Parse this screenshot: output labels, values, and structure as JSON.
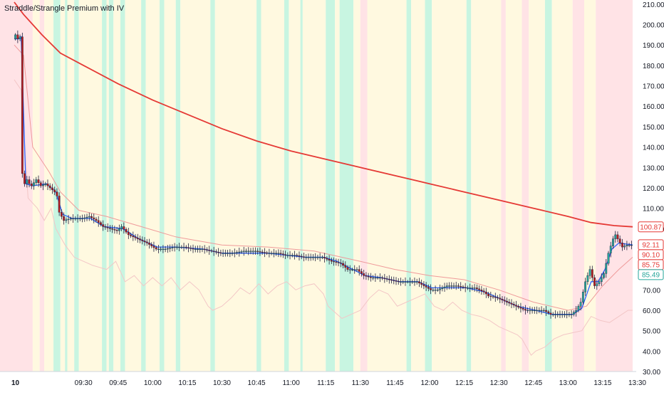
{
  "chart_data": {
    "type": "candlestick",
    "title": "Straddle/Strangle Premium with IV",
    "date_label": "10",
    "x_ticks": [
      "09:30",
      "09:45",
      "10:00",
      "10:15",
      "10:30",
      "10:45",
      "11:00",
      "11:15",
      "11:30",
      "11:45",
      "12:00",
      "12:15",
      "12:30",
      "12:45",
      "13:00",
      "13:15",
      "13:30"
    ],
    "y_ticks": [
      30,
      40,
      50,
      60,
      70,
      80,
      90,
      100,
      110,
      120,
      130,
      140,
      150,
      160,
      170,
      180,
      190,
      200,
      210
    ],
    "ylim": [
      30,
      211
    ],
    "time_range_minutes": [
      0,
      268
    ],
    "colors": {
      "up": "#26a69a",
      "down": "#b71c1c",
      "wick": "#1f1f3d",
      "blue_line": "#2962ff",
      "red_line": "#e53935",
      "thin_line": "#ef9a9a",
      "iv_line": "#f3c6c6",
      "bg_red": "#ffe3e6",
      "bg_yellow": "#fff9e0",
      "bg_green": "#c8f5e1"
    },
    "price_labels": [
      {
        "value": 100.87,
        "text": "100.87",
        "style": "red-outline"
      },
      {
        "value": 92.11,
        "text": "92.11",
        "style": "red-outline"
      },
      {
        "value": 90.1,
        "text": "90.10",
        "style": "red-outline"
      },
      {
        "value": 85.75,
        "text": "85.75",
        "style": "red-outline"
      },
      {
        "value": 85.49,
        "text": "85.49",
        "style": "green-outline"
      }
    ],
    "price_path": [
      [
        0,
        193
      ],
      [
        1,
        195
      ],
      [
        2,
        193
      ],
      [
        3,
        194
      ],
      [
        4,
        127
      ],
      [
        5,
        122
      ],
      [
        6,
        124
      ],
      [
        7,
        122
      ],
      [
        8,
        121
      ],
      [
        10,
        124
      ],
      [
        12,
        121
      ],
      [
        14,
        122
      ],
      [
        16,
        120
      ],
      [
        18,
        118
      ],
      [
        19,
        116
      ],
      [
        20,
        108
      ],
      [
        21,
        106
      ],
      [
        22,
        104
      ],
      [
        25,
        105
      ],
      [
        30,
        105
      ],
      [
        33,
        106
      ],
      [
        36,
        104
      ],
      [
        39,
        101
      ],
      [
        42,
        100
      ],
      [
        45,
        99
      ],
      [
        47,
        101
      ],
      [
        50,
        97
      ],
      [
        54,
        95
      ],
      [
        58,
        93
      ],
      [
        62,
        90
      ],
      [
        66,
        90
      ],
      [
        70,
        91
      ],
      [
        74,
        91
      ],
      [
        78,
        90
      ],
      [
        82,
        90
      ],
      [
        86,
        89
      ],
      [
        90,
        88
      ],
      [
        95,
        88
      ],
      [
        100,
        89
      ],
      [
        105,
        89
      ],
      [
        110,
        88
      ],
      [
        115,
        88
      ],
      [
        118,
        87
      ],
      [
        122,
        87
      ],
      [
        126,
        86
      ],
      [
        130,
        86
      ],
      [
        134,
        86
      ],
      [
        138,
        84
      ],
      [
        142,
        83
      ],
      [
        145,
        80
      ],
      [
        149,
        80
      ],
      [
        152,
        77
      ],
      [
        155,
        76
      ],
      [
        159,
        76
      ],
      [
        163,
        75
      ],
      [
        167,
        74
      ],
      [
        171,
        74
      ],
      [
        175,
        74
      ],
      [
        178,
        72
      ],
      [
        181,
        70
      ],
      [
        184,
        70
      ],
      [
        188,
        72
      ],
      [
        192,
        72
      ],
      [
        196,
        71
      ],
      [
        200,
        71
      ],
      [
        204,
        69
      ],
      [
        206,
        67
      ],
      [
        210,
        66
      ],
      [
        214,
        64
      ],
      [
        218,
        62
      ],
      [
        222,
        60
      ],
      [
        226,
        60
      ],
      [
        230,
        60
      ],
      [
        233,
        58
      ],
      [
        236,
        58
      ],
      [
        239,
        58
      ],
      [
        242,
        58
      ],
      [
        244,
        60
      ],
      [
        246,
        64
      ],
      [
        248,
        74
      ],
      [
        250,
        80
      ],
      [
        252,
        72
      ],
      [
        254,
        74
      ],
      [
        256,
        78
      ],
      [
        258,
        88
      ],
      [
        260,
        95
      ],
      [
        261,
        97
      ],
      [
        262,
        95
      ],
      [
        264,
        91
      ],
      [
        266,
        92
      ],
      [
        268,
        92
      ]
    ],
    "blue_line": [
      [
        0,
        193
      ],
      [
        2,
        193
      ],
      [
        3,
        194
      ],
      [
        5,
        122
      ],
      [
        8,
        121
      ],
      [
        14,
        122
      ],
      [
        18,
        118
      ],
      [
        21,
        107
      ],
      [
        25,
        105
      ],
      [
        33,
        105
      ],
      [
        39,
        101
      ],
      [
        47,
        100
      ],
      [
        54,
        95
      ],
      [
        62,
        91
      ],
      [
        70,
        91
      ],
      [
        82,
        90
      ],
      [
        90,
        88
      ],
      [
        100,
        88
      ],
      [
        110,
        88
      ],
      [
        118,
        87
      ],
      [
        126,
        86
      ],
      [
        134,
        86
      ],
      [
        140,
        84
      ],
      [
        145,
        81
      ],
      [
        152,
        77
      ],
      [
        159,
        76
      ],
      [
        167,
        74
      ],
      [
        175,
        74
      ],
      [
        181,
        71
      ],
      [
        188,
        71
      ],
      [
        196,
        71
      ],
      [
        204,
        69
      ],
      [
        210,
        66
      ],
      [
        218,
        62
      ],
      [
        226,
        60
      ],
      [
        233,
        58
      ],
      [
        242,
        58
      ],
      [
        246,
        61
      ],
      [
        250,
        74
      ],
      [
        253,
        74
      ],
      [
        256,
        80
      ],
      [
        259,
        90
      ],
      [
        262,
        93
      ],
      [
        268,
        92
      ]
    ],
    "red_line": [
      [
        0,
        211
      ],
      [
        4,
        205
      ],
      [
        12,
        195
      ],
      [
        20,
        186
      ],
      [
        30,
        180
      ],
      [
        45,
        171
      ],
      [
        60,
        163
      ],
      [
        75,
        156
      ],
      [
        90,
        149
      ],
      [
        105,
        143
      ],
      [
        120,
        138
      ],
      [
        135,
        134
      ],
      [
        150,
        130
      ],
      [
        165,
        126
      ],
      [
        180,
        122
      ],
      [
        195,
        118
      ],
      [
        210,
        114
      ],
      [
        225,
        110
      ],
      [
        240,
        106
      ],
      [
        250,
        103
      ],
      [
        260,
        101.5
      ],
      [
        268,
        100.9
      ]
    ],
    "thin_line": [
      [
        0,
        190
      ],
      [
        4,
        185
      ],
      [
        8,
        140
      ],
      [
        15,
        128
      ],
      [
        20,
        118
      ],
      [
        28,
        109
      ],
      [
        40,
        106
      ],
      [
        55,
        101
      ],
      [
        70,
        96
      ],
      [
        90,
        92
      ],
      [
        110,
        91
      ],
      [
        130,
        89
      ],
      [
        150,
        84
      ],
      [
        165,
        80
      ],
      [
        180,
        77
      ],
      [
        195,
        75
      ],
      [
        210,
        70
      ],
      [
        225,
        64
      ],
      [
        240,
        60
      ],
      [
        248,
        62
      ],
      [
        255,
        72
      ],
      [
        262,
        80
      ],
      [
        268,
        86
      ]
    ],
    "iv_line": [
      [
        0,
        173
      ],
      [
        3,
        168
      ],
      [
        6,
        115
      ],
      [
        10,
        110
      ],
      [
        13,
        104
      ],
      [
        16,
        110
      ],
      [
        18,
        100
      ],
      [
        22,
        92
      ],
      [
        26,
        86
      ],
      [
        30,
        84
      ],
      [
        34,
        82
      ],
      [
        40,
        80
      ],
      [
        44,
        84
      ],
      [
        48,
        74
      ],
      [
        52,
        77
      ],
      [
        56,
        72
      ],
      [
        60,
        76
      ],
      [
        64,
        72
      ],
      [
        68,
        76
      ],
      [
        72,
        70
      ],
      [
        76,
        74
      ],
      [
        80,
        70
      ],
      [
        84,
        62
      ],
      [
        86,
        60
      ],
      [
        90,
        62
      ],
      [
        94,
        66
      ],
      [
        98,
        71
      ],
      [
        102,
        68
      ],
      [
        106,
        73
      ],
      [
        110,
        68
      ],
      [
        114,
        72
      ],
      [
        118,
        74
      ],
      [
        122,
        70
      ],
      [
        126,
        72
      ],
      [
        130,
        73
      ],
      [
        134,
        68
      ],
      [
        136,
        62
      ],
      [
        140,
        58
      ],
      [
        142,
        56
      ],
      [
        146,
        58
      ],
      [
        150,
        60
      ],
      [
        154,
        66
      ],
      [
        158,
        70
      ],
      [
        162,
        68
      ],
      [
        166,
        62
      ],
      [
        170,
        64
      ],
      [
        174,
        66
      ],
      [
        178,
        68
      ],
      [
        182,
        62
      ],
      [
        186,
        60
      ],
      [
        190,
        64
      ],
      [
        194,
        60
      ],
      [
        198,
        58
      ],
      [
        202,
        57
      ],
      [
        206,
        55
      ],
      [
        210,
        52
      ],
      [
        214,
        50
      ],
      [
        218,
        48
      ],
      [
        220,
        46
      ],
      [
        222,
        42
      ],
      [
        224,
        38
      ],
      [
        226,
        40
      ],
      [
        230,
        42
      ],
      [
        234,
        46
      ],
      [
        238,
        48
      ],
      [
        242,
        49
      ],
      [
        246,
        50
      ],
      [
        250,
        57
      ],
      [
        254,
        55
      ],
      [
        258,
        54
      ],
      [
        262,
        57
      ],
      [
        266,
        60
      ],
      [
        268,
        60
      ]
    ],
    "background_bands": [
      {
        "start": 0,
        "end": 8,
        "zone": "red"
      },
      {
        "start": 8,
        "end": 11,
        "zone": "yellow"
      },
      {
        "start": 11,
        "end": 13,
        "zone": "red"
      },
      {
        "start": 13,
        "end": 17,
        "zone": "yellow"
      },
      {
        "start": 17,
        "end": 20,
        "zone": "green"
      },
      {
        "start": 20,
        "end": 22,
        "zone": "yellow"
      },
      {
        "start": 22,
        "end": 23,
        "zone": "green"
      },
      {
        "start": 23,
        "end": 26,
        "zone": "yellow"
      },
      {
        "start": 26,
        "end": 28,
        "zone": "green"
      },
      {
        "start": 28,
        "end": 38,
        "zone": "yellow"
      },
      {
        "start": 38,
        "end": 40,
        "zone": "green"
      },
      {
        "start": 40,
        "end": 41,
        "zone": "yellow"
      },
      {
        "start": 41,
        "end": 43,
        "zone": "green"
      },
      {
        "start": 43,
        "end": 46,
        "zone": "yellow"
      },
      {
        "start": 46,
        "end": 48,
        "zone": "green"
      },
      {
        "start": 48,
        "end": 55,
        "zone": "yellow"
      },
      {
        "start": 55,
        "end": 57,
        "zone": "green"
      },
      {
        "start": 57,
        "end": 63,
        "zone": "yellow"
      },
      {
        "start": 63,
        "end": 65,
        "zone": "green"
      },
      {
        "start": 65,
        "end": 70,
        "zone": "yellow"
      },
      {
        "start": 70,
        "end": 72,
        "zone": "green"
      },
      {
        "start": 72,
        "end": 85,
        "zone": "yellow"
      },
      {
        "start": 85,
        "end": 87,
        "zone": "green"
      },
      {
        "start": 87,
        "end": 105,
        "zone": "yellow"
      },
      {
        "start": 105,
        "end": 107,
        "zone": "green"
      },
      {
        "start": 107,
        "end": 117,
        "zone": "yellow"
      },
      {
        "start": 117,
        "end": 119,
        "zone": "green"
      },
      {
        "start": 119,
        "end": 124,
        "zone": "yellow"
      },
      {
        "start": 124,
        "end": 125,
        "zone": "green"
      },
      {
        "start": 125,
        "end": 135,
        "zone": "yellow"
      },
      {
        "start": 135,
        "end": 139,
        "zone": "green"
      },
      {
        "start": 139,
        "end": 141,
        "zone": "yellow"
      },
      {
        "start": 141,
        "end": 147,
        "zone": "green"
      },
      {
        "start": 147,
        "end": 150,
        "zone": "yellow"
      },
      {
        "start": 150,
        "end": 153,
        "zone": "red"
      },
      {
        "start": 153,
        "end": 170,
        "zone": "yellow"
      },
      {
        "start": 170,
        "end": 172,
        "zone": "green"
      },
      {
        "start": 172,
        "end": 178,
        "zone": "yellow"
      },
      {
        "start": 178,
        "end": 181,
        "zone": "green"
      },
      {
        "start": 181,
        "end": 196,
        "zone": "yellow"
      },
      {
        "start": 196,
        "end": 198,
        "zone": "green"
      },
      {
        "start": 198,
        "end": 211,
        "zone": "yellow"
      },
      {
        "start": 211,
        "end": 213,
        "zone": "red"
      },
      {
        "start": 213,
        "end": 220,
        "zone": "yellow"
      },
      {
        "start": 220,
        "end": 223,
        "zone": "red"
      },
      {
        "start": 223,
        "end": 230,
        "zone": "yellow"
      },
      {
        "start": 230,
        "end": 233,
        "zone": "green"
      },
      {
        "start": 233,
        "end": 242,
        "zone": "yellow"
      },
      {
        "start": 242,
        "end": 247,
        "zone": "red"
      },
      {
        "start": 247,
        "end": 252,
        "zone": "yellow"
      },
      {
        "start": 252,
        "end": 268,
        "zone": "red"
      }
    ]
  }
}
